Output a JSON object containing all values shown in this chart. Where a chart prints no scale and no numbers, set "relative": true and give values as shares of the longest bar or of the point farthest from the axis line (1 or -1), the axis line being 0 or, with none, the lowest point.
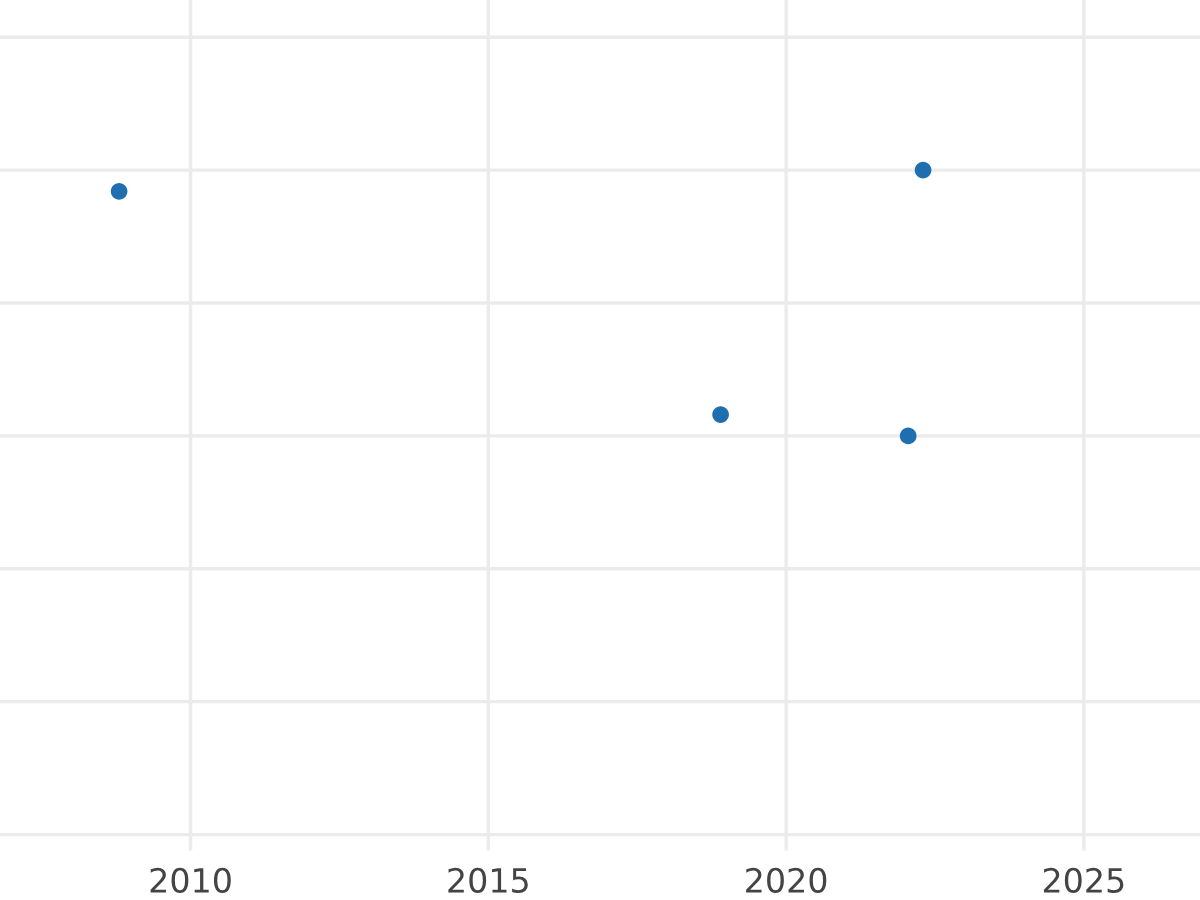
{
  "chart_data": {
    "type": "scatter",
    "relative": true,
    "x": [
      2008.8,
      2018.9,
      2022.05,
      2022.3
    ],
    "values": [
      0.92,
      0.08,
      0,
      1
    ],
    "color": "#1f6fb0",
    "marker": "circle",
    "grid": true,
    "xlim": [
      2006.8,
      2026.95
    ],
    "xticks": [
      2010,
      2015,
      2020,
      2025
    ],
    "tick_labels": "x"
  }
}
